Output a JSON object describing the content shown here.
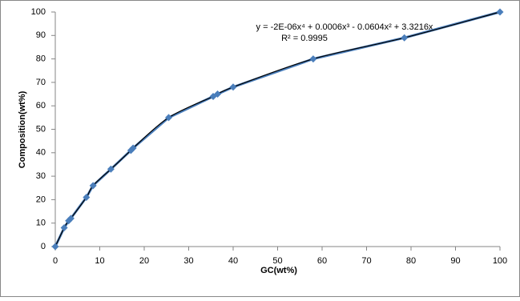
{
  "chart_data": {
    "type": "scatter",
    "x_label": "GC(wt%)",
    "y_label": "Composition(wt%)",
    "trendline_equation": "y = -2E-06x⁴ + 0.0006x³ - 0.0604x² + 3.3216x",
    "trendline_r2": "R² = 0.9995",
    "series": [
      {
        "color": "#4a7ebb",
        "trendline_color": "#000000",
        "x": [
          0,
          2,
          3,
          3.5,
          7,
          8.5,
          12.5,
          17,
          17.5,
          25.5,
          35.5,
          36.5,
          40,
          58,
          78.5,
          100
        ],
        "values": [
          0,
          8,
          11,
          12,
          21,
          26,
          33,
          41,
          42,
          55,
          64,
          65,
          68,
          80,
          89,
          100
        ]
      }
    ],
    "xlim": [
      0,
      100
    ],
    "xticks": [
      0,
      10,
      20,
      30,
      40,
      50,
      60,
      70,
      80,
      90,
      100
    ],
    "ylim": [
      0,
      100
    ],
    "yticks": [
      0,
      10,
      20,
      30,
      40,
      50,
      60,
      70,
      80,
      90,
      100
    ],
    "grid": false
  }
}
